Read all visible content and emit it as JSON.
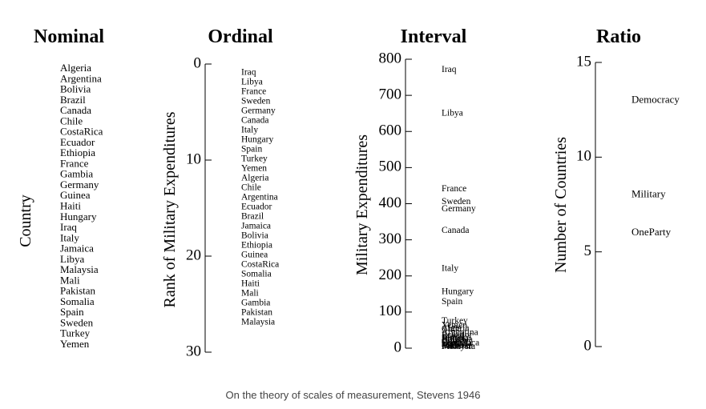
{
  "caption": "On the theory of scales of measurement, Stevens 1946",
  "chart_data": [
    {
      "type": "table",
      "title": "Nominal",
      "ylabel": "Country",
      "items": [
        "Algeria",
        "Argentina",
        "Bolivia",
        "Brazil",
        "Canada",
        "Chile",
        "CostaRica",
        "Ecuador",
        "Ethiopia",
        "France",
        "Gambia",
        "Germany",
        "Guinea",
        "Haiti",
        "Hungary",
        "Iraq",
        "Italy",
        "Jamaica",
        "Libya",
        "Malaysia",
        "Mali",
        "Pakistan",
        "Somalia",
        "Spain",
        "Sweden",
        "Turkey",
        "Yemen"
      ]
    },
    {
      "type": "scatter",
      "title": "Ordinal",
      "ylabel": "Rank of Military Expenditures",
      "ylim": [
        0,
        30
      ],
      "yticks": [
        0,
        10,
        20,
        30
      ],
      "items": [
        "Iraq",
        "Libya",
        "France",
        "Sweden",
        "Germany",
        "Canada",
        "Italy",
        "Hungary",
        "Spain",
        "Turkey",
        "Yemen",
        "Algeria",
        "Chile",
        "Argentina",
        "Ecuador",
        "Brazil",
        "Jamaica",
        "Bolivia",
        "Ethiopia",
        "Guinea",
        "CostaRica",
        "Somalia",
        "Haiti",
        "Mali",
        "Gambia",
        "Pakistan",
        "Malaysia"
      ]
    },
    {
      "type": "scatter",
      "title": "Interval",
      "ylabel": "Military Expenditures",
      "ylim": [
        0,
        800
      ],
      "yticks": [
        0,
        100,
        200,
        300,
        400,
        500,
        600,
        700,
        800
      ],
      "points": [
        {
          "label": "Iraq",
          "y": 770
        },
        {
          "label": "Libya",
          "y": 650
        },
        {
          "label": "France",
          "y": 440
        },
        {
          "label": "Sweden",
          "y": 405
        },
        {
          "label": "Germany",
          "y": 385
        },
        {
          "label": "Canada",
          "y": 325
        },
        {
          "label": "Italy",
          "y": 220
        },
        {
          "label": "Hungary",
          "y": 155
        },
        {
          "label": "Spain",
          "y": 128
        },
        {
          "label": "Turkey",
          "y": 75
        },
        {
          "label": "Yemen",
          "y": 62
        },
        {
          "label": "Algeria",
          "y": 55
        },
        {
          "label": "Chile",
          "y": 52
        },
        {
          "label": "Argentina",
          "y": 42
        },
        {
          "label": "Ecuador",
          "y": 36
        },
        {
          "label": "Brazil",
          "y": 32
        },
        {
          "label": "Jamaica",
          "y": 28
        },
        {
          "label": "Bolivia",
          "y": 25
        },
        {
          "label": "Ethiopia",
          "y": 22
        },
        {
          "label": "Guinea",
          "y": 18
        },
        {
          "label": "CostaRica",
          "y": 14
        },
        {
          "label": "Somalia",
          "y": 12
        },
        {
          "label": "Haiti",
          "y": 10
        },
        {
          "label": "Mali",
          "y": 8
        },
        {
          "label": "Gambia",
          "y": 6
        },
        {
          "label": "Pakistan",
          "y": 5
        },
        {
          "label": "Malaysia",
          "y": 4
        }
      ]
    },
    {
      "type": "scatter",
      "title": "Ratio",
      "ylabel": "Number of Countries",
      "ylim": [
        0,
        15
      ],
      "yticks": [
        0,
        5,
        10,
        15
      ],
      "points": [
        {
          "label": "Democracy",
          "y": 13
        },
        {
          "label": "Military",
          "y": 8
        },
        {
          "label": "OneParty",
          "y": 6
        }
      ]
    }
  ]
}
